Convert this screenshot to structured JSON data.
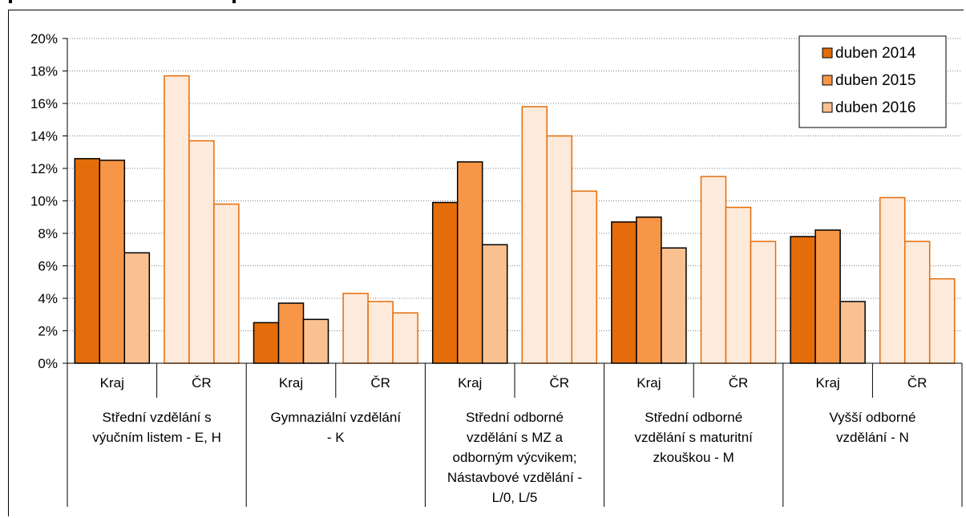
{
  "chart_data": {
    "type": "bar",
    "title": "",
    "xlabel": "",
    "ylabel": "",
    "ylim": [
      0,
      20
    ],
    "y_ticks": [
      "0%",
      "2%",
      "4%",
      "6%",
      "8%",
      "10%",
      "12%",
      "14%",
      "16%",
      "18%",
      "20%"
    ],
    "grid": true,
    "legend_position": "top-right",
    "groups": [
      {
        "label": "Střední vzdělání s výučním listem - E, H",
        "label_lines": [
          "Střední vzdělání s",
          "výučním listem - E, H"
        ]
      },
      {
        "label": "Gymnaziální vzdělání - K",
        "label_lines": [
          "Gymnaziální vzdělání",
          "- K"
        ]
      },
      {
        "label": "Střední odborné vzdělání s MZ a odborným výcvikem; Nástavbové vzdělání - L/0, L/5",
        "label_lines": [
          "Střední odborné",
          "vzdělání s MZ a",
          "odborným výcvikem;",
          "Nástavbové vzdělání -",
          "L/0, L/5"
        ]
      },
      {
        "label": "Střední odborné vzdělání s maturitní zkouškou - M",
        "label_lines": [
          "Střední odborné",
          "vzdělání s maturitní",
          "zkouškou - M"
        ]
      },
      {
        "label": "Vyšší odborné vzdělání - N",
        "label_lines": [
          "Vyšší odborné",
          "vzdělání - N"
        ]
      }
    ],
    "subcategories": [
      "Kraj",
      "ČR"
    ],
    "series": [
      {
        "name": "duben 2014",
        "color": "#E46C0A",
        "kraj": [
          12.6,
          2.5,
          9.9,
          8.7,
          7.8
        ],
        "cr": [
          17.7,
          4.3,
          15.8,
          11.5,
          10.2
        ]
      },
      {
        "name": "duben 2015",
        "color": "#F79646",
        "kraj": [
          12.5,
          3.7,
          12.4,
          9.0,
          8.2
        ],
        "cr": [
          13.7,
          3.8,
          14.0,
          9.6,
          7.5
        ]
      },
      {
        "name": "duben 2016",
        "color": "#FAC090",
        "kraj": [
          6.8,
          2.7,
          7.3,
          7.1,
          3.8
        ],
        "cr": [
          9.8,
          3.1,
          10.6,
          7.5,
          5.2
        ]
      }
    ],
    "colors": {
      "kraj_fill": [
        "#E46C0A",
        "#F79646",
        "#FAC090"
      ],
      "cr_fill": "#FDEADA",
      "cr_stroke": "#E46C0A",
      "kraj_stroke": "#000000"
    }
  }
}
